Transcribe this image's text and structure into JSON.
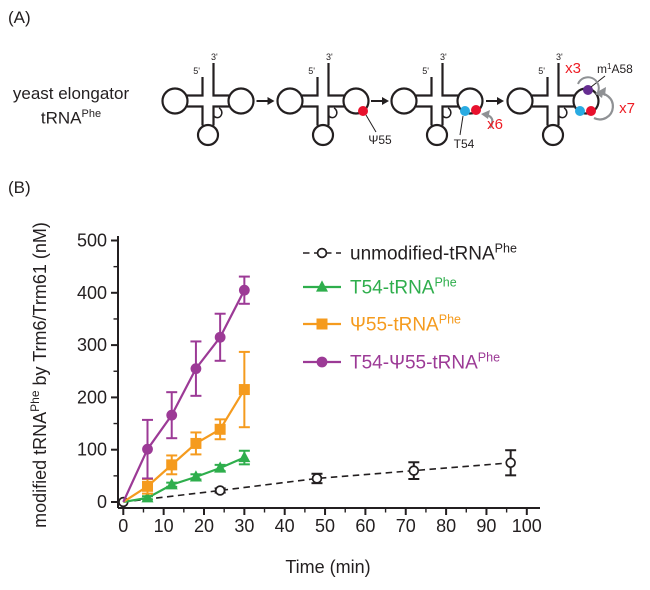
{
  "panel_a": {
    "label": "(A)",
    "intro_line1": "yeast elongator",
    "intro_line2_base": "tRNA",
    "intro_line2_sup": "Phe",
    "five_prime": "5'",
    "three_prime": "3'",
    "step2": {
      "dot_label": "Ψ55"
    },
    "step3": {
      "dot_label": "T54",
      "multiplier": "x6"
    },
    "step4": {
      "multiplier_top": "x3",
      "multiplier_right": "x7",
      "m1a58_pre": "m",
      "m1a58_sup": "1",
      "m1a58_post": "A58"
    },
    "colors": {
      "red_dot": "#e8112d",
      "blue_dot": "#29abe2",
      "purple_dot": "#662d91",
      "multiplier_red": "#ed1c24",
      "arrow_gray": "#8f9194",
      "line_black": "#231f20"
    }
  },
  "panel_b": {
    "label": "(B)"
  },
  "chart_data": {
    "type": "line",
    "xlabel": "Time (min)",
    "ylabel_pre": "modified tRNA",
    "ylabel_sup": "Phe",
    "ylabel_post": " by Trm6/Trm61 (nM)",
    "xlim": [
      0,
      100
    ],
    "ylim": [
      0,
      500
    ],
    "xticks": [
      0,
      10,
      20,
      30,
      40,
      50,
      60,
      70,
      80,
      90,
      100
    ],
    "yticks": [
      0,
      100,
      200,
      300,
      400,
      500
    ],
    "x_minor_step": 5,
    "y_minor_step": 50,
    "grid": false,
    "legend_position": "upper right inside",
    "series": [
      {
        "name_base": "unmodified-tRNA",
        "name_sup": "Phe",
        "color": "#231f20",
        "marker": "circle-open",
        "line": "dashed",
        "show_origin_marker": true,
        "x": [
          0,
          24,
          48,
          72,
          96
        ],
        "y": [
          0,
          22,
          45,
          60,
          75
        ],
        "err": [
          0,
          4,
          9,
          16,
          24
        ]
      },
      {
        "name_base": "T54-tRNA",
        "name_sup": "Phe",
        "color": "#2eae4c",
        "marker": "triangle",
        "line": "solid",
        "show_origin_marker": false,
        "x": [
          0,
          6,
          12,
          18,
          24,
          30
        ],
        "y": [
          0,
          8,
          33,
          48,
          65,
          85
        ],
        "err": [
          0,
          3,
          4,
          5,
          6,
          13
        ]
      },
      {
        "name_base": "Ψ55-tRNA",
        "name_sup": "Phe",
        "color": "#f59b1e",
        "marker": "square",
        "line": "solid",
        "show_origin_marker": false,
        "x": [
          0,
          6,
          12,
          18,
          24,
          30
        ],
        "y": [
          0,
          30,
          71,
          112,
          139,
          215
        ],
        "err": [
          0,
          14,
          18,
          21,
          19,
          72
        ]
      },
      {
        "name_base": "T54-Ψ55-tRNA",
        "name_sup": "Phe",
        "color": "#9c3a96",
        "marker": "circle",
        "line": "solid",
        "show_origin_marker": false,
        "x": [
          0,
          6,
          12,
          18,
          24,
          30
        ],
        "y": [
          0,
          101,
          166,
          255,
          315,
          405
        ],
        "err": [
          0,
          56,
          44,
          52,
          45,
          26
        ]
      }
    ]
  }
}
